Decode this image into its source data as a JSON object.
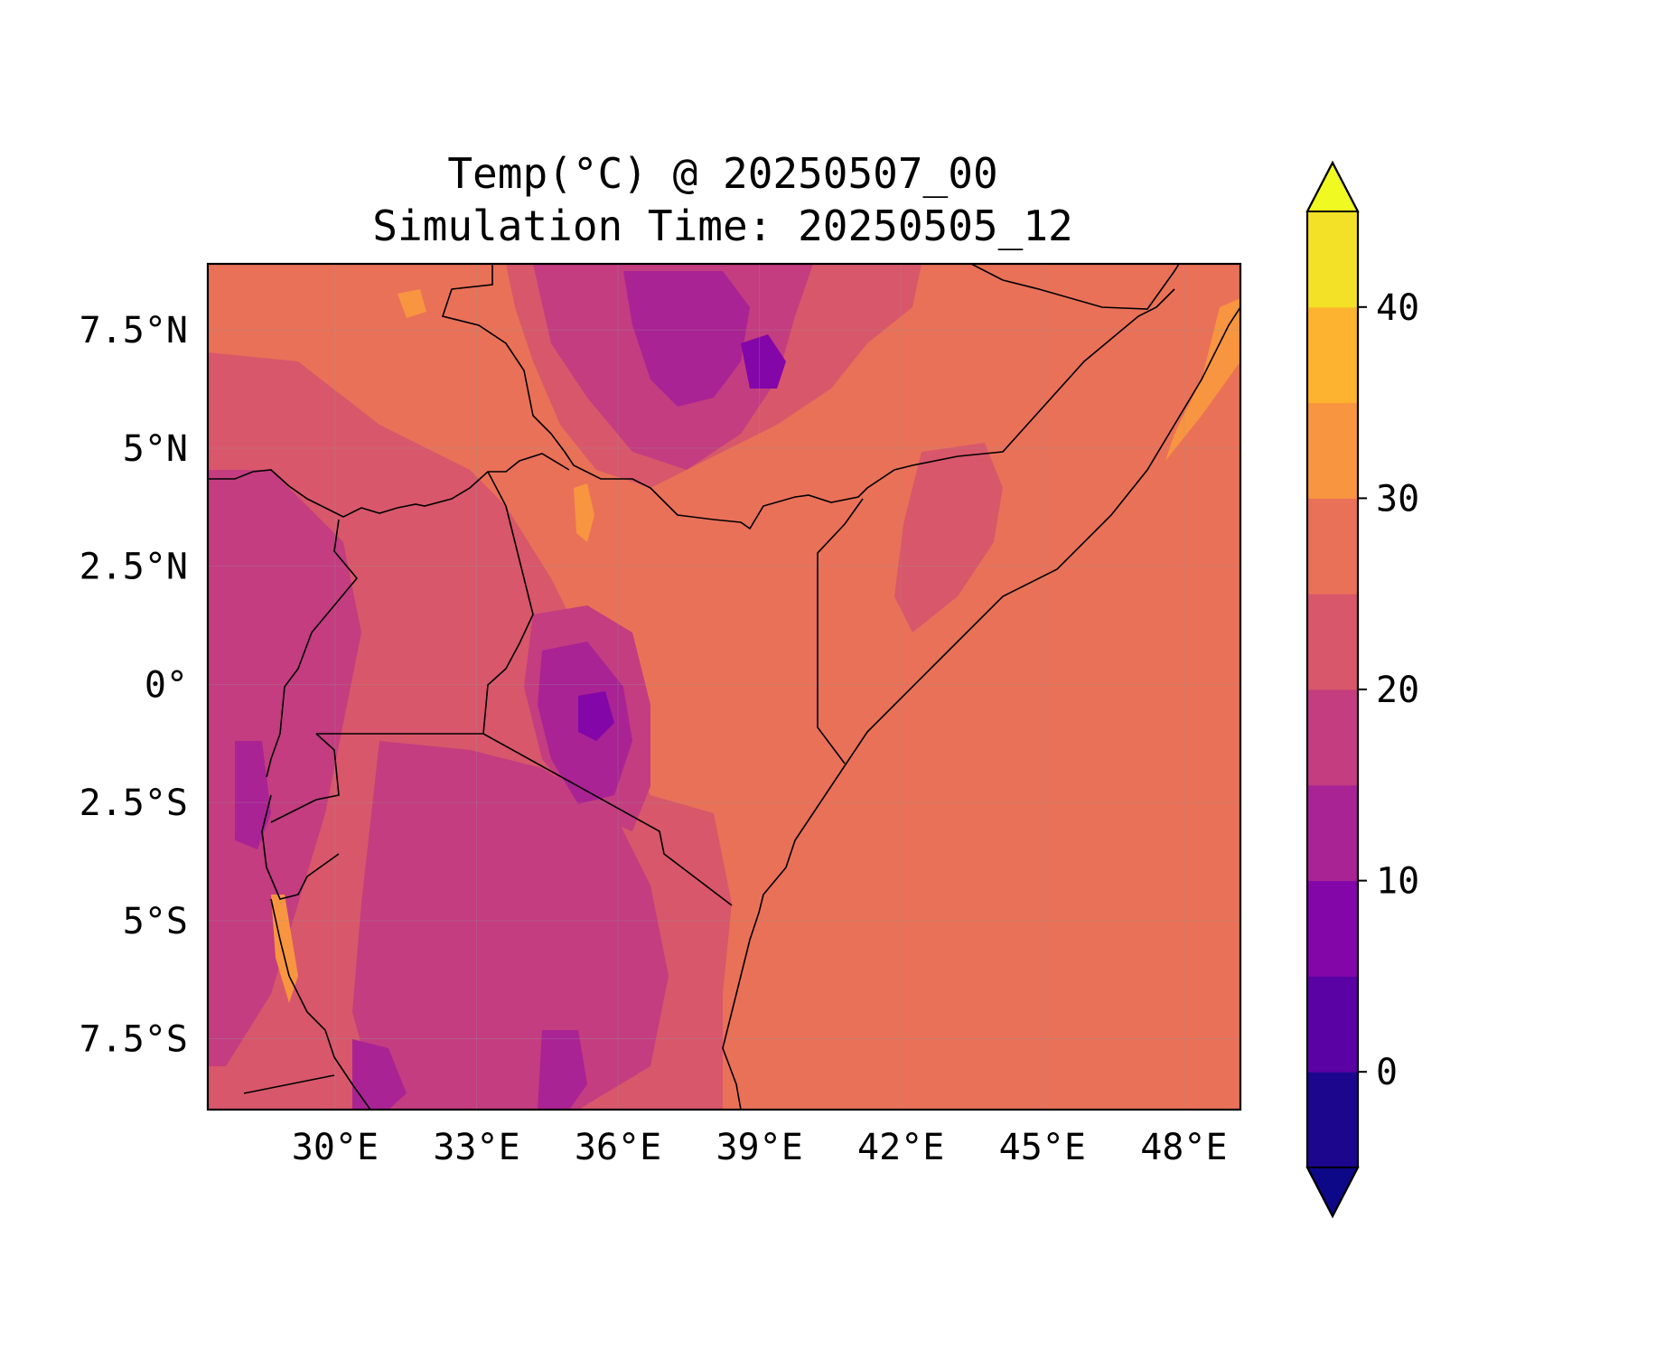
{
  "title": {
    "line1": "Temp(°C) @ 20250507_00",
    "line2": "Simulation Time: 20250505_12"
  },
  "map": {
    "lon_range": [
      27.3,
      49.2
    ],
    "lat_range": [
      -9.0,
      8.9
    ],
    "x_ticks": [
      {
        "value": 30,
        "label": "30°E"
      },
      {
        "value": 33,
        "label": "33°E"
      },
      {
        "value": 36,
        "label": "36°E"
      },
      {
        "value": 39,
        "label": "39°E"
      },
      {
        "value": 42,
        "label": "42°E"
      },
      {
        "value": 45,
        "label": "45°E"
      },
      {
        "value": 48,
        "label": "48°E"
      }
    ],
    "y_ticks": [
      {
        "value": 7.5,
        "label": "7.5°N"
      },
      {
        "value": 5,
        "label": "5°N"
      },
      {
        "value": 2.5,
        "label": "2.5°N"
      },
      {
        "value": 0,
        "label": "0°"
      },
      {
        "value": -2.5,
        "label": "2.5°S"
      },
      {
        "value": -5,
        "label": "5°S"
      },
      {
        "value": -7.5,
        "label": "7.5°S"
      }
    ],
    "gridlines": true
  },
  "colorbar": {
    "levels": [
      -5,
      0,
      5,
      10,
      15,
      20,
      25,
      30,
      35,
      40,
      45
    ],
    "colors": [
      "#1b068d",
      "#5a02a3",
      "#8306a8",
      "#a92395",
      "#c33d80",
      "#d8576b",
      "#e97158",
      "#f89540",
      "#fdb32f",
      "#f2e127"
    ],
    "under_color": "#0d0887",
    "over_color": "#f0f921",
    "extend": "both",
    "tick_labels": [
      {
        "value": 0,
        "label": "0"
      },
      {
        "value": 10,
        "label": "10"
      },
      {
        "value": 20,
        "label": "20"
      },
      {
        "value": 30,
        "label": "30"
      },
      {
        "value": 40,
        "label": "40"
      }
    ]
  }
}
